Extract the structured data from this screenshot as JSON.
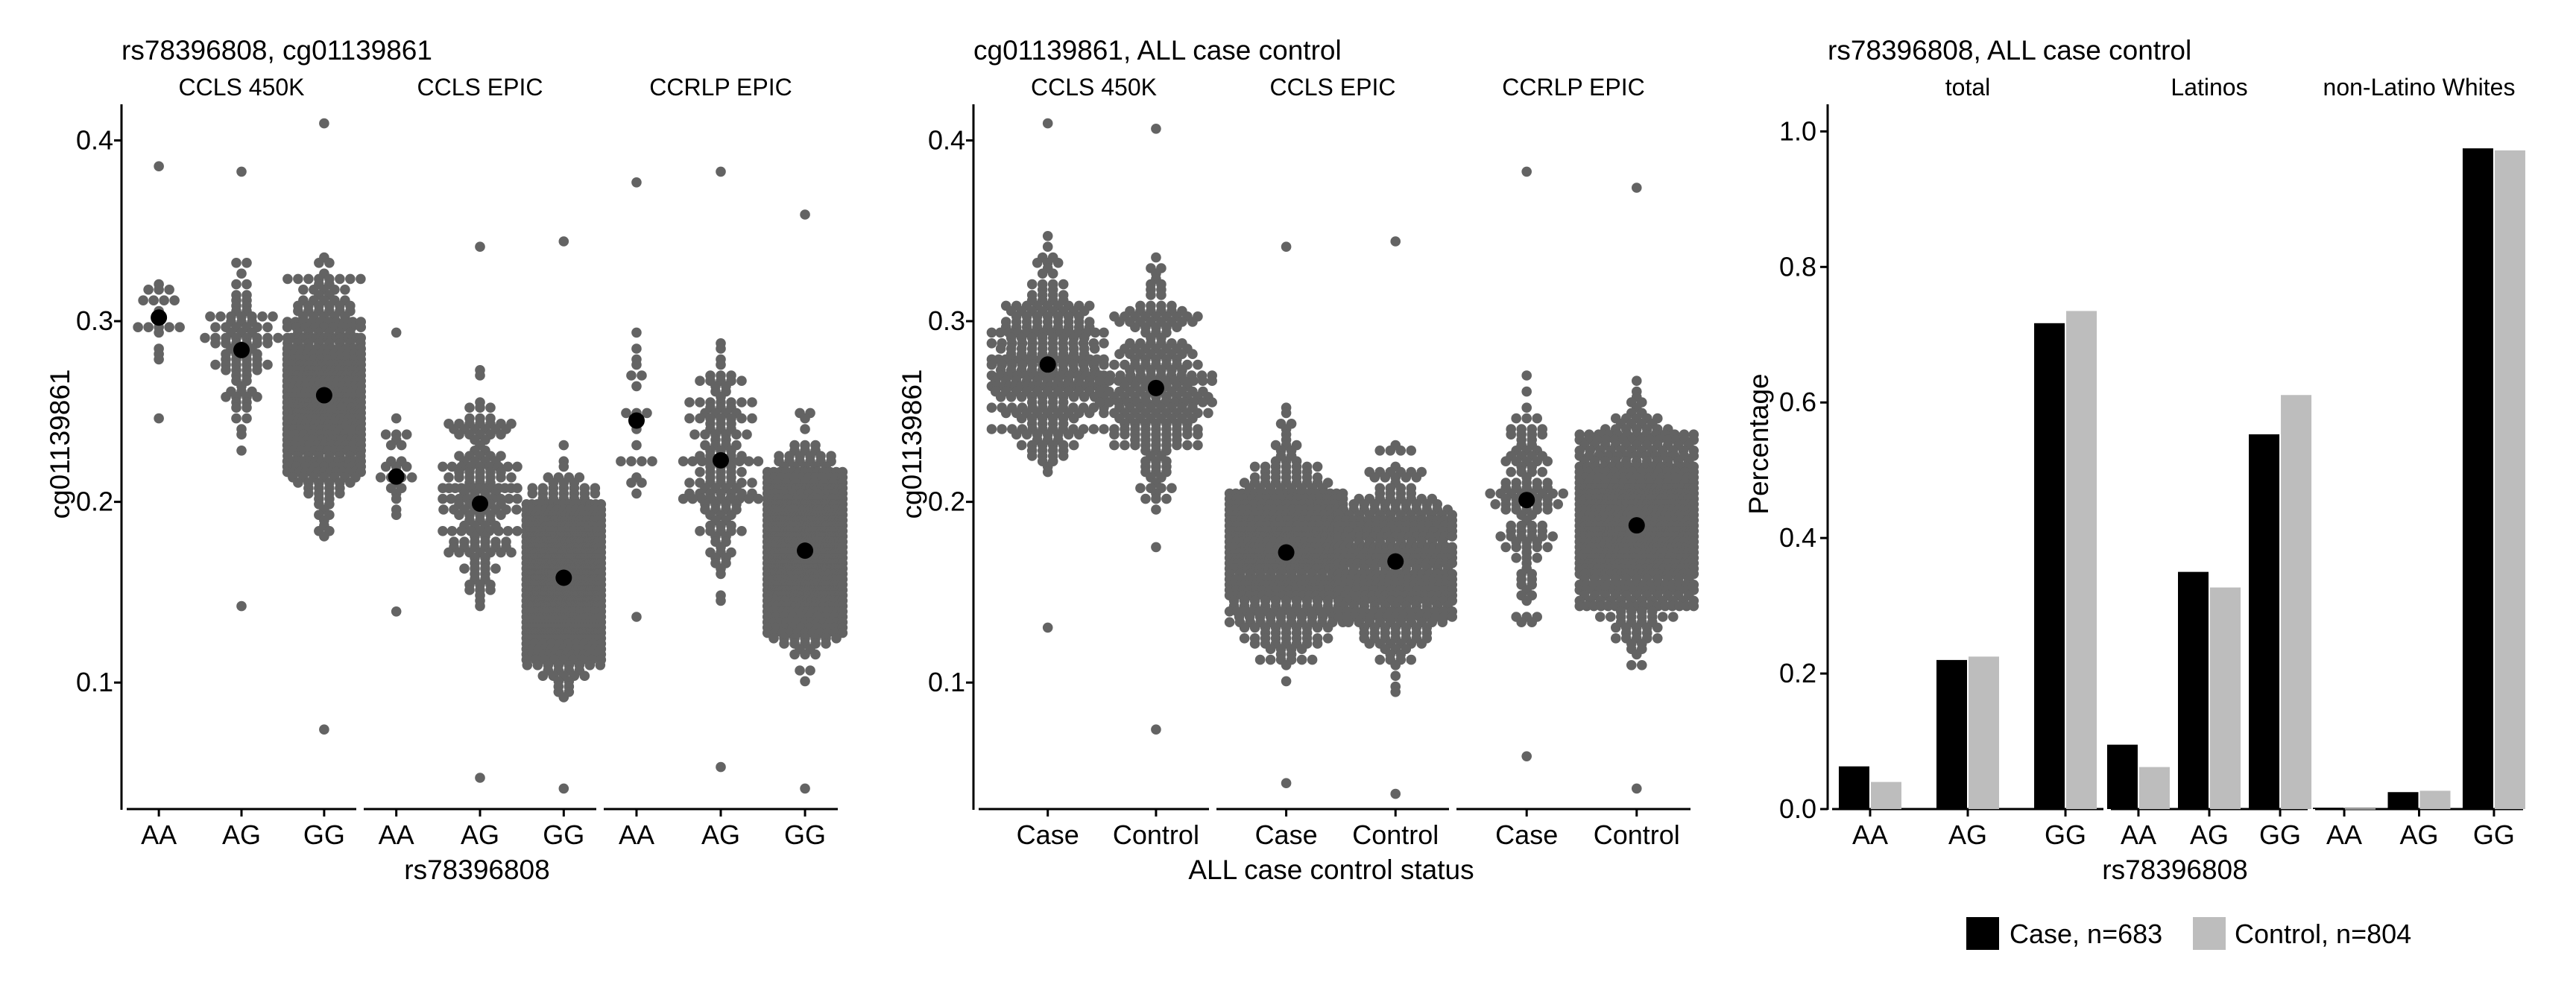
{
  "colors": {
    "dots": "#636363",
    "mean": "#000000",
    "case_bar": "#000000",
    "control_bar": "#bdbdbd",
    "axis": "#000000"
  },
  "chart_data": [
    {
      "type": "scatter",
      "subtype": "beeswarm",
      "title": "rs78396808, cg01139861",
      "xlabel": "rs78396808",
      "ylabel": "cg01139861",
      "ylim": [
        0.03,
        0.42
      ],
      "yticks": [
        "0.1",
        "0.2",
        "0.3",
        "0.4"
      ],
      "yticks_values": [
        0.1,
        0.2,
        0.3,
        0.4
      ],
      "grid": false,
      "facets": [
        {
          "label": "CCLS 450K",
          "categories": [
            "AA",
            "AG",
            "GG"
          ],
          "groups": [
            {
              "n": 20,
              "range": [
                0.245,
                0.385
              ],
              "mean": 0.302
            },
            {
              "n": 90,
              "range": [
                0.143,
                0.383
              ],
              "mean": 0.284
            },
            {
              "n": 480,
              "range": [
                0.075,
                0.408
              ],
              "mean": 0.259
            }
          ]
        },
        {
          "label": "CCLS EPIC",
          "categories": [
            "AA",
            "AG",
            "GG"
          ],
          "groups": [
            {
              "n": 26,
              "range": [
                0.14,
                0.295
              ],
              "mean": 0.214
            },
            {
              "n": 170,
              "range": [
                0.047,
                0.342
              ],
              "mean": 0.199
            },
            {
              "n": 900,
              "range": [
                0.04,
                0.344
              ],
              "mean": 0.158
            }
          ]
        },
        {
          "label": "CCRLP EPIC",
          "categories": [
            "AA",
            "AG",
            "GG"
          ],
          "groups": [
            {
              "n": 22,
              "range": [
                0.135,
                0.376
              ],
              "mean": 0.245
            },
            {
              "n": 150,
              "range": [
                0.054,
                0.382
              ],
              "mean": 0.223
            },
            {
              "n": 750,
              "range": [
                0.042,
                0.36
              ],
              "mean": 0.173
            }
          ]
        }
      ]
    },
    {
      "type": "scatter",
      "subtype": "beeswarm",
      "title": "cg01139861, ALL case control",
      "xlabel": "ALL case control status",
      "ylabel": "cg01139861",
      "ylim": [
        0.03,
        0.42
      ],
      "yticks": [
        "0.1",
        "0.2",
        "0.3",
        "0.4"
      ],
      "yticks_values": [
        0.1,
        0.2,
        0.3,
        0.4
      ],
      "grid": false,
      "facets": [
        {
          "label": "CCLS 450K",
          "categories": [
            "Case",
            "Control"
          ],
          "groups": [
            {
              "n": 300,
              "range": [
                0.13,
                0.41
              ],
              "mean": 0.276
            },
            {
              "n": 250,
              "range": [
                0.075,
                0.406
              ],
              "mean": 0.263
            }
          ]
        },
        {
          "label": "CCLS EPIC",
          "categories": [
            "Case",
            "Control"
          ],
          "groups": [
            {
              "n": 600,
              "range": [
                0.043,
                0.342
              ],
              "mean": 0.172
            },
            {
              "n": 420,
              "range": [
                0.038,
                0.344
              ],
              "mean": 0.167
            }
          ]
        },
        {
          "label": "CCRLP EPIC",
          "categories": [
            "Case",
            "Control"
          ],
          "groups": [
            {
              "n": 120,
              "range": [
                0.06,
                0.382
              ],
              "mean": 0.201
            },
            {
              "n": 700,
              "range": [
                0.042,
                0.375
              ],
              "mean": 0.187
            }
          ]
        }
      ]
    },
    {
      "type": "bar",
      "title": "rs78396808, ALL case control",
      "xlabel": "rs78396808",
      "ylabel": "Percentage",
      "ylim": [
        0,
        1.04
      ],
      "yticks": [
        "0.0",
        "0.2",
        "0.4",
        "0.6",
        "0.8",
        "1.0"
      ],
      "yticks_values": [
        0,
        0.2,
        0.4,
        0.6,
        0.8,
        1.0
      ],
      "grid": false,
      "legend_position": "bottom",
      "legend": [
        "Case, n=683",
        "Control, n=804"
      ],
      "facets": [
        {
          "label": "total",
          "categories": [
            "AA",
            "AG",
            "GG"
          ],
          "series": [
            {
              "name": "Case, n=683",
              "values": [
                0.063,
                0.22,
                0.717
              ]
            },
            {
              "name": "Control, n=804",
              "values": [
                0.04,
                0.225,
                0.735
              ]
            }
          ]
        },
        {
          "label": "Latinos",
          "categories": [
            "AA",
            "AG",
            "GG"
          ],
          "series": [
            {
              "name": "Case, n=683",
              "values": [
                0.095,
                0.35,
                0.553
              ]
            },
            {
              "name": "Control, n=804",
              "values": [
                0.062,
                0.327,
                0.611
              ]
            }
          ]
        },
        {
          "label": "non-Latino Whites",
          "categories": [
            "AA",
            "AG",
            "GG"
          ],
          "series": [
            {
              "name": "Case, n=683",
              "values": [
                0.002,
                0.025,
                0.975
              ]
            },
            {
              "name": "Control, n=804",
              "values": [
                0.001,
                0.027,
                0.972
              ]
            }
          ]
        }
      ]
    }
  ]
}
